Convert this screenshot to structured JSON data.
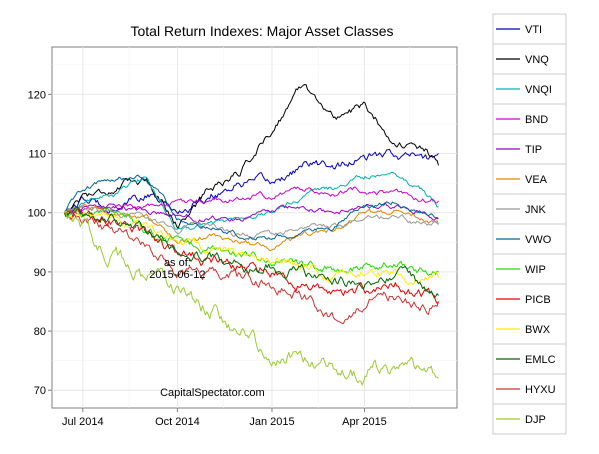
{
  "chart_data": {
    "type": "line",
    "title": "Total Return Indexes: Major Asset Classes",
    "xlabel": "",
    "ylabel": "",
    "xlim": [
      "2014-06-01",
      "2015-06-30"
    ],
    "ylim": [
      67,
      128
    ],
    "x_ticks": [
      {
        "label": "Jul 2014",
        "date": "2014-07-01"
      },
      {
        "label": "Oct 2014",
        "date": "2014-10-01"
      },
      {
        "label": "Jan 2015",
        "date": "2015-01-01"
      },
      {
        "label": "Apr 2015",
        "date": "2015-04-01"
      }
    ],
    "y_ticks": [
      70,
      80,
      90,
      100,
      110,
      120
    ],
    "grid": true,
    "legend_position": "right",
    "annotations": [
      {
        "text": "as of:",
        "date": "2014-10-01",
        "y": 91
      },
      {
        "text": "2015-06-12",
        "date": "2014-10-01",
        "y": 89
      },
      {
        "text": "CapitalSpectator.com",
        "date": "2014-11-04",
        "y": 69
      }
    ],
    "dates": [
      "2014-06-13",
      "2014-07-01",
      "2014-08-01",
      "2014-09-01",
      "2014-10-01",
      "2014-11-01",
      "2014-12-01",
      "2015-01-01",
      "2015-02-01",
      "2015-03-01",
      "2015-04-01",
      "2015-05-01",
      "2015-06-01",
      "2015-06-12"
    ],
    "series": [
      {
        "name": "VTI",
        "color": "#0000cc",
        "values": [
          100,
          102,
          101,
          103,
          100,
          103,
          105,
          105,
          108,
          108,
          109,
          110,
          109,
          110
        ]
      },
      {
        "name": "VNQ",
        "color": "#000000",
        "values": [
          100,
          103,
          104,
          106,
          98,
          104,
          107,
          114,
          122,
          116,
          118,
          112,
          110,
          108
        ]
      },
      {
        "name": "VNQI",
        "color": "#00b0b0",
        "values": [
          100,
          102,
          103,
          106,
          97,
          98,
          99,
          100,
          103,
          104,
          106,
          107,
          103,
          101
        ]
      },
      {
        "name": "BND",
        "color": "#cc00cc",
        "values": [
          100,
          100.5,
          101,
          101,
          101.5,
          102,
          102.5,
          103,
          104,
          103.5,
          104,
          103,
          102,
          102
        ]
      },
      {
        "name": "TIP",
        "color": "#9900cc",
        "values": [
          100,
          100.5,
          101,
          100,
          99.5,
          99,
          99,
          100,
          101,
          100,
          101,
          101,
          100,
          99
        ]
      },
      {
        "name": "VEA",
        "color": "#dd8800",
        "values": [
          100,
          101,
          100,
          99,
          95,
          96,
          95,
          94,
          96,
          97,
          100,
          100,
          99,
          98
        ]
      },
      {
        "name": "JNK",
        "color": "#999999",
        "values": [
          100,
          100.5,
          100,
          99,
          97,
          98,
          96,
          96,
          97,
          98,
          99,
          99,
          98,
          98
        ]
      },
      {
        "name": "VWO",
        "color": "#006699",
        "values": [
          100,
          104,
          106,
          106,
          99,
          98,
          96,
          96,
          97,
          97,
          101,
          102,
          99,
          99
        ]
      },
      {
        "name": "WIP",
        "color": "#22dd00",
        "values": [
          100,
          100,
          99,
          97,
          95,
          94,
          93,
          92,
          91,
          90,
          91,
          92,
          90,
          90
        ]
      },
      {
        "name": "PICB",
        "color": "#ee0000",
        "values": [
          100,
          100,
          99,
          96,
          93,
          92,
          91,
          90,
          88,
          86,
          87,
          88,
          86,
          85
        ]
      },
      {
        "name": "BWX",
        "color": "#ffee00",
        "values": [
          100,
          100,
          99,
          97,
          95,
          94,
          93,
          92,
          91,
          89,
          90,
          90,
          89,
          89
        ]
      },
      {
        "name": "EMLC",
        "color": "#006600",
        "values": [
          100,
          100,
          99,
          97,
          94,
          93,
          91,
          91,
          90,
          88,
          88,
          90,
          87,
          86
        ]
      },
      {
        "name": "HYXU",
        "color": "#cc3333",
        "values": [
          100,
          99,
          97,
          94,
          90,
          90,
          89,
          88,
          86,
          82,
          85,
          86,
          84,
          85
        ]
      },
      {
        "name": "DJP",
        "color": "#99cc33",
        "values": [
          100,
          97,
          93,
          89,
          86,
          84,
          79,
          77,
          76,
          74,
          73,
          74,
          73,
          72
        ]
      }
    ]
  }
}
